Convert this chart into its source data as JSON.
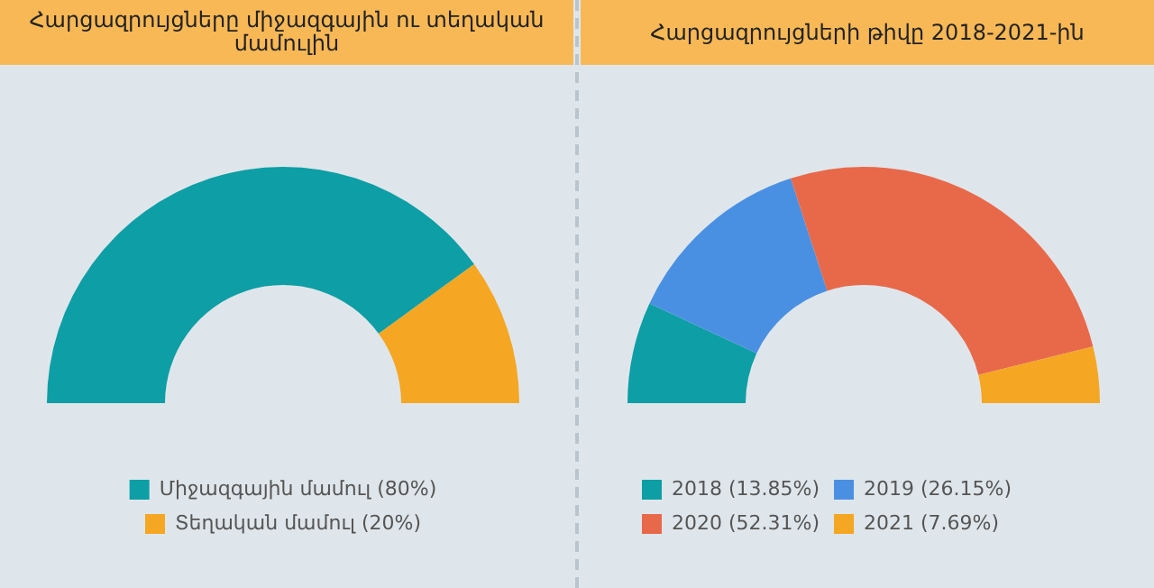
{
  "chart_data": [
    {
      "type": "donut",
      "title": "Հարցազրույցները միջազգային ու տեղական մամուլին",
      "categories": [
        "Միջազգային մամուլ (80%)",
        "Տեղական մամուլ (20%)"
      ],
      "values": [
        80,
        20
      ],
      "colors": [
        "#0e9ea5",
        "#f5a623"
      ],
      "legend": "bottom"
    },
    {
      "type": "donut",
      "title": "Հարցազրույցների թիվը 2018-2021-ին",
      "categories": [
        "2018 (13.85%)",
        "2019 (26.15%)",
        "2020 (52.31%)",
        "2021 (7.69%)"
      ],
      "values": [
        13.85,
        26.15,
        52.31,
        7.69
      ],
      "colors": [
        "#0e9ea5",
        "#4a90e2",
        "#e8694a",
        "#f5a623"
      ],
      "legend": "bottom"
    }
  ]
}
